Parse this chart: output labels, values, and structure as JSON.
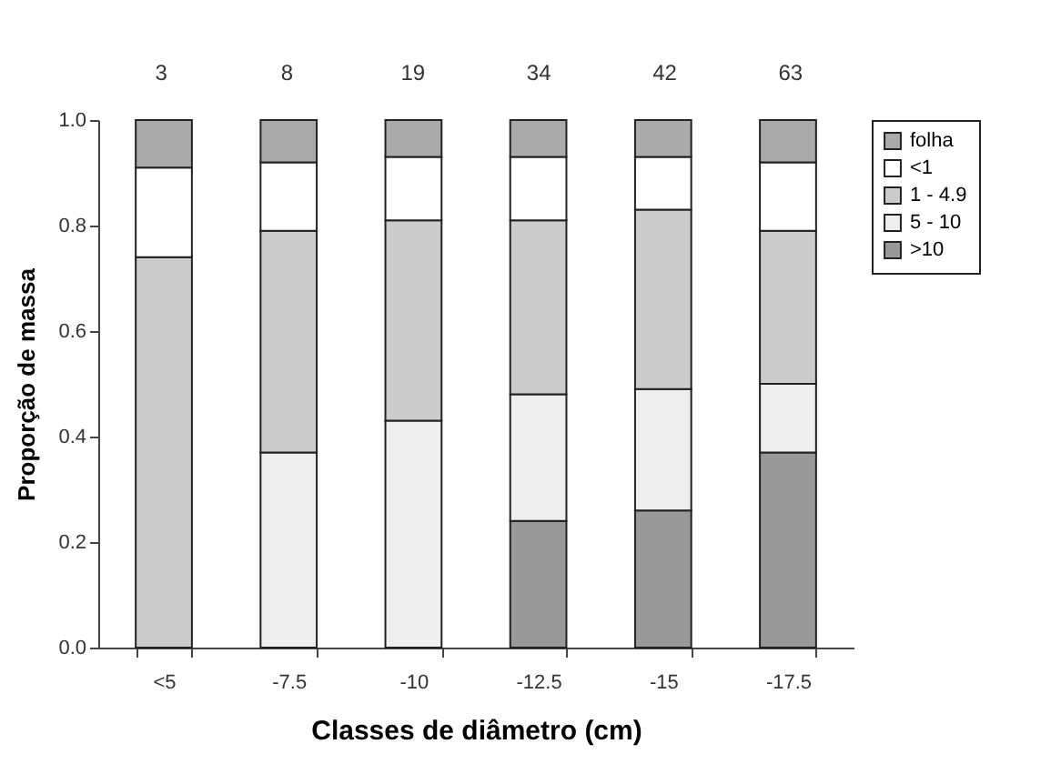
{
  "chart_data": {
    "type": "bar",
    "stacked": true,
    "xlabel": "Classes de diâmetro (cm)",
    "ylabel": "Proporção de massa",
    "categories": [
      "<5",
      "-7.5",
      "-10",
      "-12.5",
      "-15",
      "-17.5"
    ],
    "series": [
      {
        "name": ">10",
        "color": "#999999",
        "values": [
          0,
          0,
          0,
          0.24,
          0.26,
          0.37
        ]
      },
      {
        "name": "5 - 10",
        "color": "#eeeeee",
        "values": [
          0,
          0.37,
          0.43,
          0.24,
          0.23,
          0.13
        ]
      },
      {
        "name": "1 - 4.9",
        "color": "#cccccc",
        "values": [
          0.74,
          0.42,
          0.38,
          0.33,
          0.34,
          0.29
        ]
      },
      {
        "name": "<1",
        "color": "#ffffff",
        "values": [
          0.17,
          0.13,
          0.12,
          0.12,
          0.1,
          0.13
        ]
      },
      {
        "name": "folha",
        "color": "#aaaaaa",
        "values": [
          0.09,
          0.08,
          0.07,
          0.07,
          0.07,
          0.08
        ]
      }
    ],
    "ylim": [
      0,
      1
    ],
    "yticks": [
      {
        "value": 0,
        "label": "0.0"
      },
      0.2,
      0.4,
      0.6,
      0.8,
      {
        "value": 1,
        "label": "1.0"
      }
    ],
    "grid": false,
    "legend": "right",
    "annotations": [
      "3",
      "8",
      "19",
      "34",
      "42",
      "63"
    ]
  }
}
